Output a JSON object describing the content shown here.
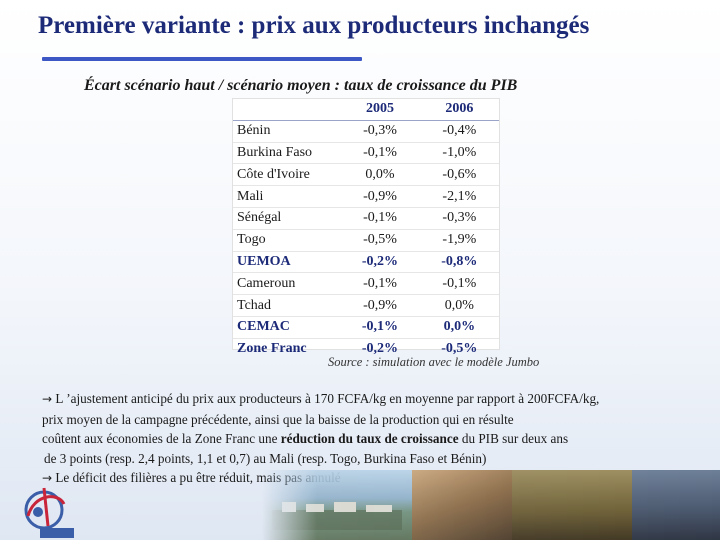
{
  "title": "Première variante : prix aux producteurs inchangés",
  "subtitle": "Écart scénario haut / scénario moyen : taux de croissance du PIB",
  "table": {
    "columns": [
      "2005",
      "2006"
    ],
    "rows": [
      {
        "name": "Bénin",
        "v2005": "-0,3%",
        "v2006": "-0,4%",
        "aggregate": false
      },
      {
        "name": "Burkina Faso",
        "v2005": "-0,1%",
        "v2006": "-1,0%",
        "aggregate": false
      },
      {
        "name": "Côte d'Ivoire",
        "v2005": "0,0%",
        "v2006": "-0,6%",
        "aggregate": false
      },
      {
        "name": "Mali",
        "v2005": "-0,9%",
        "v2006": "-2,1%",
        "aggregate": false
      },
      {
        "name": "Sénégal",
        "v2005": "-0,1%",
        "v2006": "-0,3%",
        "aggregate": false
      },
      {
        "name": "Togo",
        "v2005": "-0,5%",
        "v2006": "-1,9%",
        "aggregate": false
      },
      {
        "name": "UEMOA",
        "v2005": "-0,2%",
        "v2006": "-0,8%",
        "aggregate": true
      },
      {
        "name": "Cameroun",
        "v2005": "-0,1%",
        "v2006": "-0,1%",
        "aggregate": false
      },
      {
        "name": "Tchad",
        "v2005": "-0,9%",
        "v2006": "0,0%",
        "aggregate": false
      },
      {
        "name": "CEMAC",
        "v2005": "-0,1%",
        "v2006": "0,0%",
        "aggregate": true
      },
      {
        "name": "Zone Franc",
        "v2005": "-0,2%",
        "v2006": "-0,5%",
        "aggregate": true
      }
    ]
  },
  "source": "Source : simulation avec le modèle Jumbo",
  "paragraph1": {
    "arrow": "→",
    "line1": " L ’ajustement anticipé du prix aux producteurs à 170 FCFA/kg en moyenne par rapport à 200FCFA/kg,",
    "line2": "prix moyen de la campagne précédente, ainsi que la baisse de la production qui en résulte",
    "line3_pre": "coûtent aux économies de la Zone Franc une ",
    "line3_bold": "réduction du taux de croissance",
    "line3_post": " du PIB sur deux ans",
    "line4": "de 3 points (resp. 2,4 points, 1,1 et 0,7) au Mali (resp. Togo, Burkina Faso et Bénin)"
  },
  "paragraph2": {
    "arrow": "→",
    "text": " Le déficit des filières a pu être réduit,  mais pas annulé"
  },
  "colors": {
    "title": "#1c2a78",
    "rule": "#3d57c5",
    "logo_red": "#c8243a",
    "logo_blue": "#3b5ea8"
  }
}
